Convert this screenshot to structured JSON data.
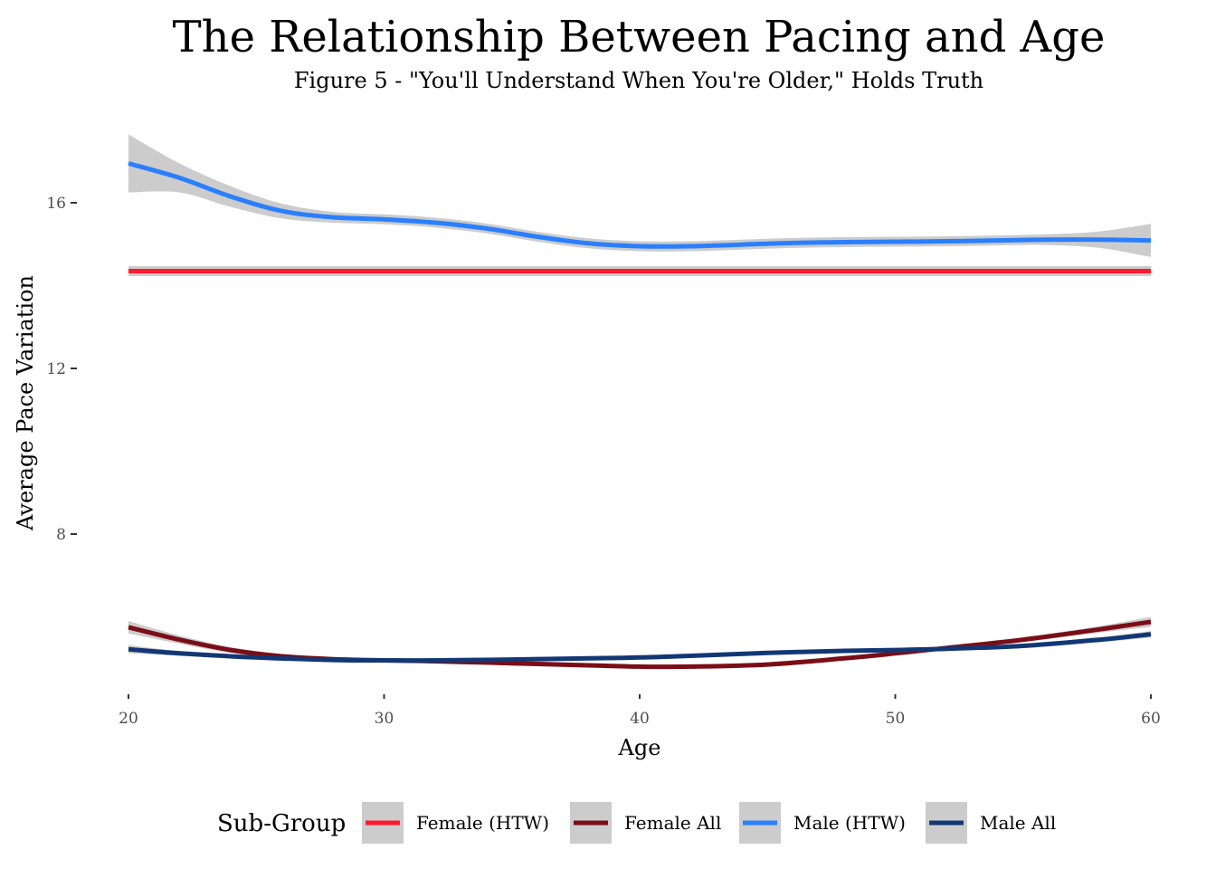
{
  "chart_data": {
    "type": "line",
    "title": "The Relationship Between Pacing and Age",
    "subtitle": "Figure 5 - \"You'll Understand When You're Older,\" Holds Truth",
    "xlabel": "Age",
    "ylabel": "Average Pace Variation",
    "xlim": [
      20,
      60
    ],
    "ylim": [
      4,
      17.8
    ],
    "x_ticks": [
      20,
      30,
      40,
      50,
      60
    ],
    "y_ticks": [
      8,
      12,
      16
    ],
    "grid": false,
    "legend_title": "Sub-Group",
    "legend_position": "bottom",
    "band_color": "#cccccc",
    "series": [
      {
        "name": "Female (HTW)",
        "color": "#ff1a2e",
        "x": [
          20,
          25,
          30,
          35,
          40,
          45,
          50,
          55,
          60
        ],
        "y": [
          14.35,
          14.35,
          14.35,
          14.35,
          14.35,
          14.35,
          14.35,
          14.35,
          14.35
        ],
        "band": [
          0.12,
          0.12,
          0.12,
          0.12,
          0.12,
          0.12,
          0.12,
          0.12,
          0.12
        ]
      },
      {
        "name": "Female All",
        "color": "#7a0d16",
        "x": [
          20,
          22,
          24,
          26,
          28,
          30,
          32,
          35,
          38,
          40,
          42,
          45,
          48,
          50,
          52,
          55,
          58,
          60
        ],
        "y": [
          5.75,
          5.45,
          5.2,
          5.05,
          4.98,
          4.95,
          4.93,
          4.88,
          4.83,
          4.8,
          4.8,
          4.85,
          5.0,
          5.12,
          5.25,
          5.45,
          5.7,
          5.88
        ],
        "band": [
          0.15,
          0.1,
          0.07,
          0.05,
          0.05,
          0.05,
          0.05,
          0.05,
          0.05,
          0.05,
          0.05,
          0.05,
          0.05,
          0.05,
          0.05,
          0.06,
          0.08,
          0.12
        ]
      },
      {
        "name": "Male (HTW)",
        "color": "#2a7fff",
        "x": [
          20,
          22,
          24,
          26,
          28,
          30,
          32,
          34,
          36,
          38,
          40,
          42,
          44,
          46,
          48,
          50,
          52,
          54,
          56,
          58,
          60
        ],
        "y": [
          16.95,
          16.6,
          16.15,
          15.8,
          15.65,
          15.6,
          15.52,
          15.38,
          15.18,
          15.02,
          14.95,
          14.95,
          14.99,
          15.03,
          15.05,
          15.06,
          15.07,
          15.09,
          15.11,
          15.11,
          15.09
        ],
        "band": [
          0.7,
          0.35,
          0.25,
          0.18,
          0.13,
          0.12,
          0.12,
          0.12,
          0.12,
          0.12,
          0.12,
          0.12,
          0.12,
          0.12,
          0.12,
          0.12,
          0.12,
          0.12,
          0.13,
          0.2,
          0.4
        ]
      },
      {
        "name": "Male All",
        "color": "#123775",
        "x": [
          20,
          22,
          25,
          28,
          30,
          32,
          35,
          38,
          40,
          42,
          45,
          48,
          50,
          52,
          55,
          58,
          60
        ],
        "y": [
          5.22,
          5.12,
          5.02,
          4.96,
          4.95,
          4.95,
          4.97,
          5.0,
          5.02,
          5.06,
          5.13,
          5.18,
          5.2,
          5.23,
          5.3,
          5.45,
          5.58
        ],
        "band": [
          0.1,
          0.06,
          0.05,
          0.04,
          0.04,
          0.04,
          0.04,
          0.04,
          0.04,
          0.04,
          0.04,
          0.04,
          0.04,
          0.04,
          0.05,
          0.06,
          0.08
        ]
      }
    ]
  }
}
